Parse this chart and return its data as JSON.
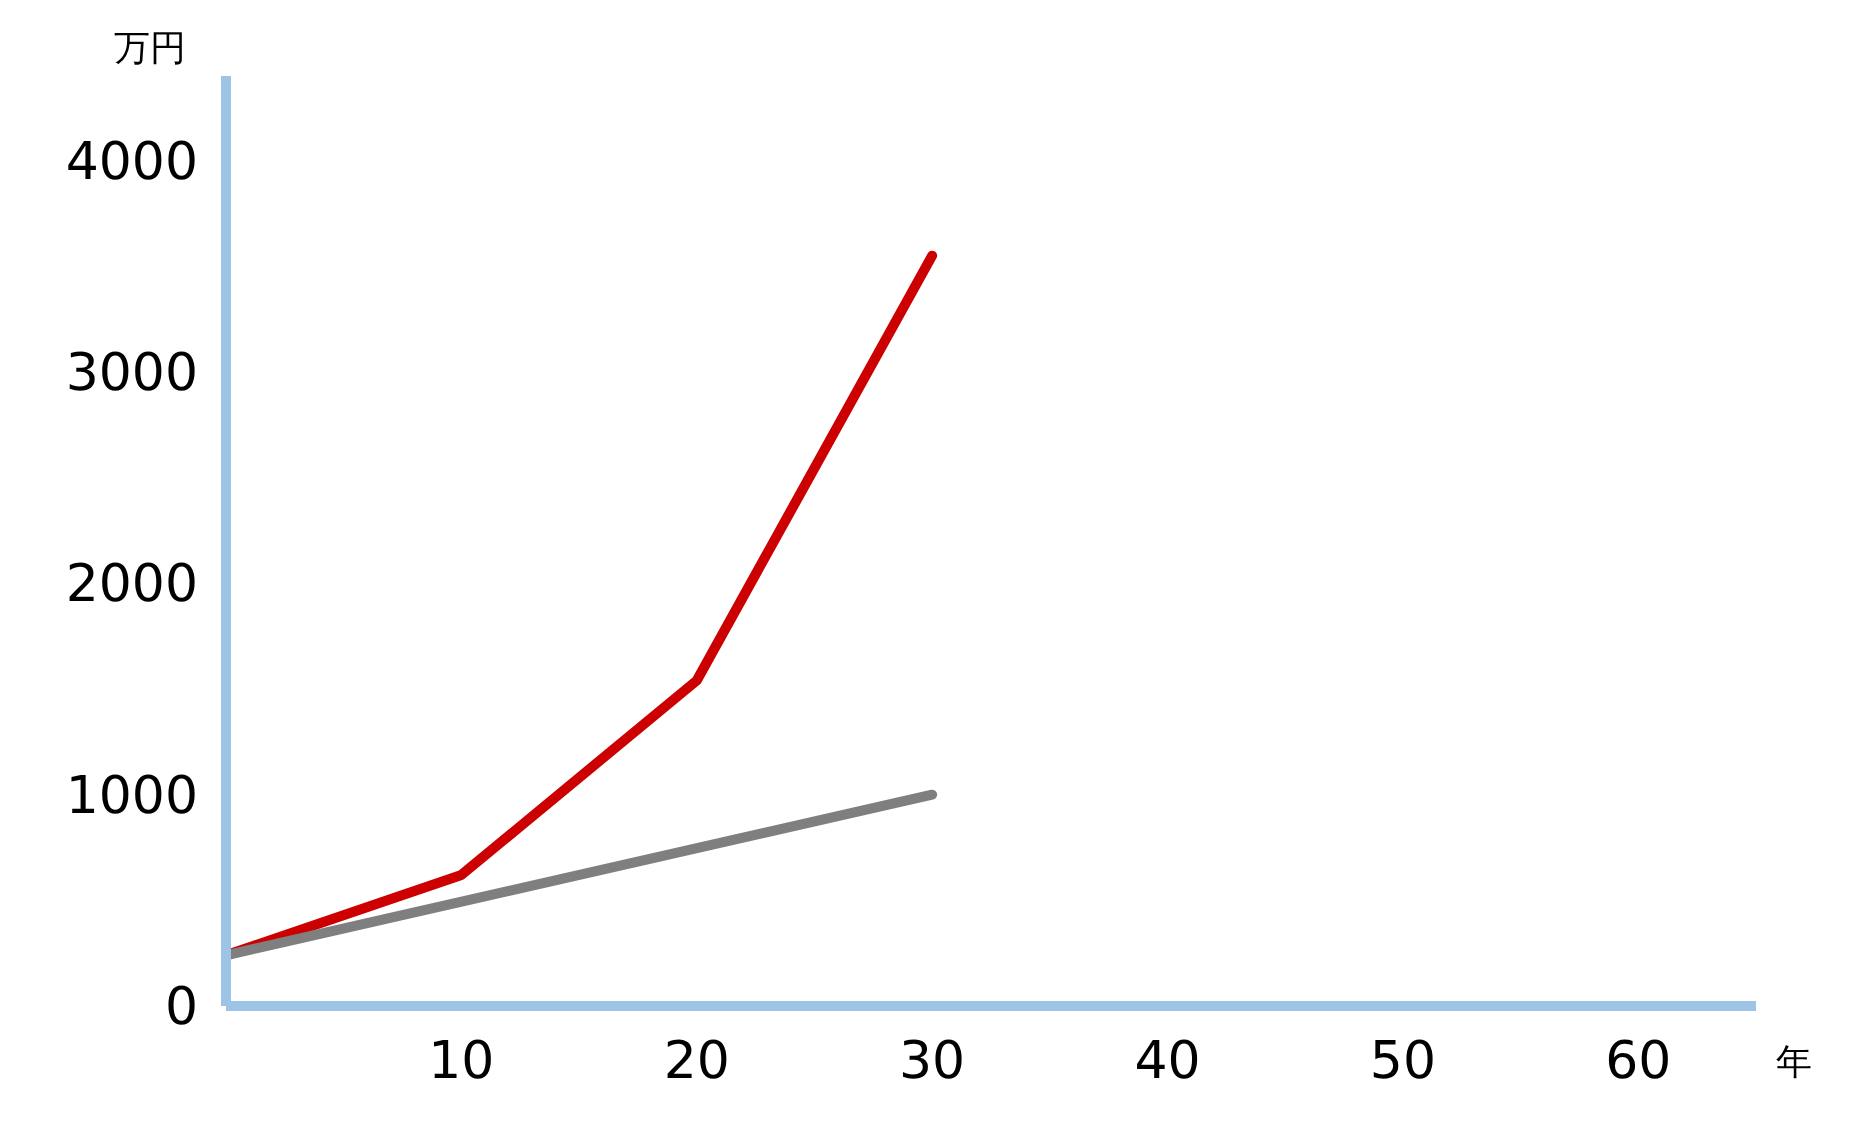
{
  "chart_data": {
    "type": "line",
    "xlabel": "年",
    "ylabel": "万円",
    "xlim": [
      0,
      65
    ],
    "xticks": [
      10,
      20,
      30,
      40,
      50,
      60
    ],
    "ylim": [
      0,
      4400
    ],
    "yticks": [
      0,
      1000,
      2000,
      3000,
      4000
    ],
    "series": [
      {
        "color": "#cc0000",
        "x": [
          0,
          10,
          20,
          30
        ],
        "values": [
          240,
          620,
          1540,
          3550
        ]
      },
      {
        "color": "#7f7f7f",
        "x": [
          0,
          30
        ],
        "values": [
          240,
          1000
        ]
      }
    ],
    "grid": false,
    "marker": "none",
    "line_style": "solid"
  }
}
